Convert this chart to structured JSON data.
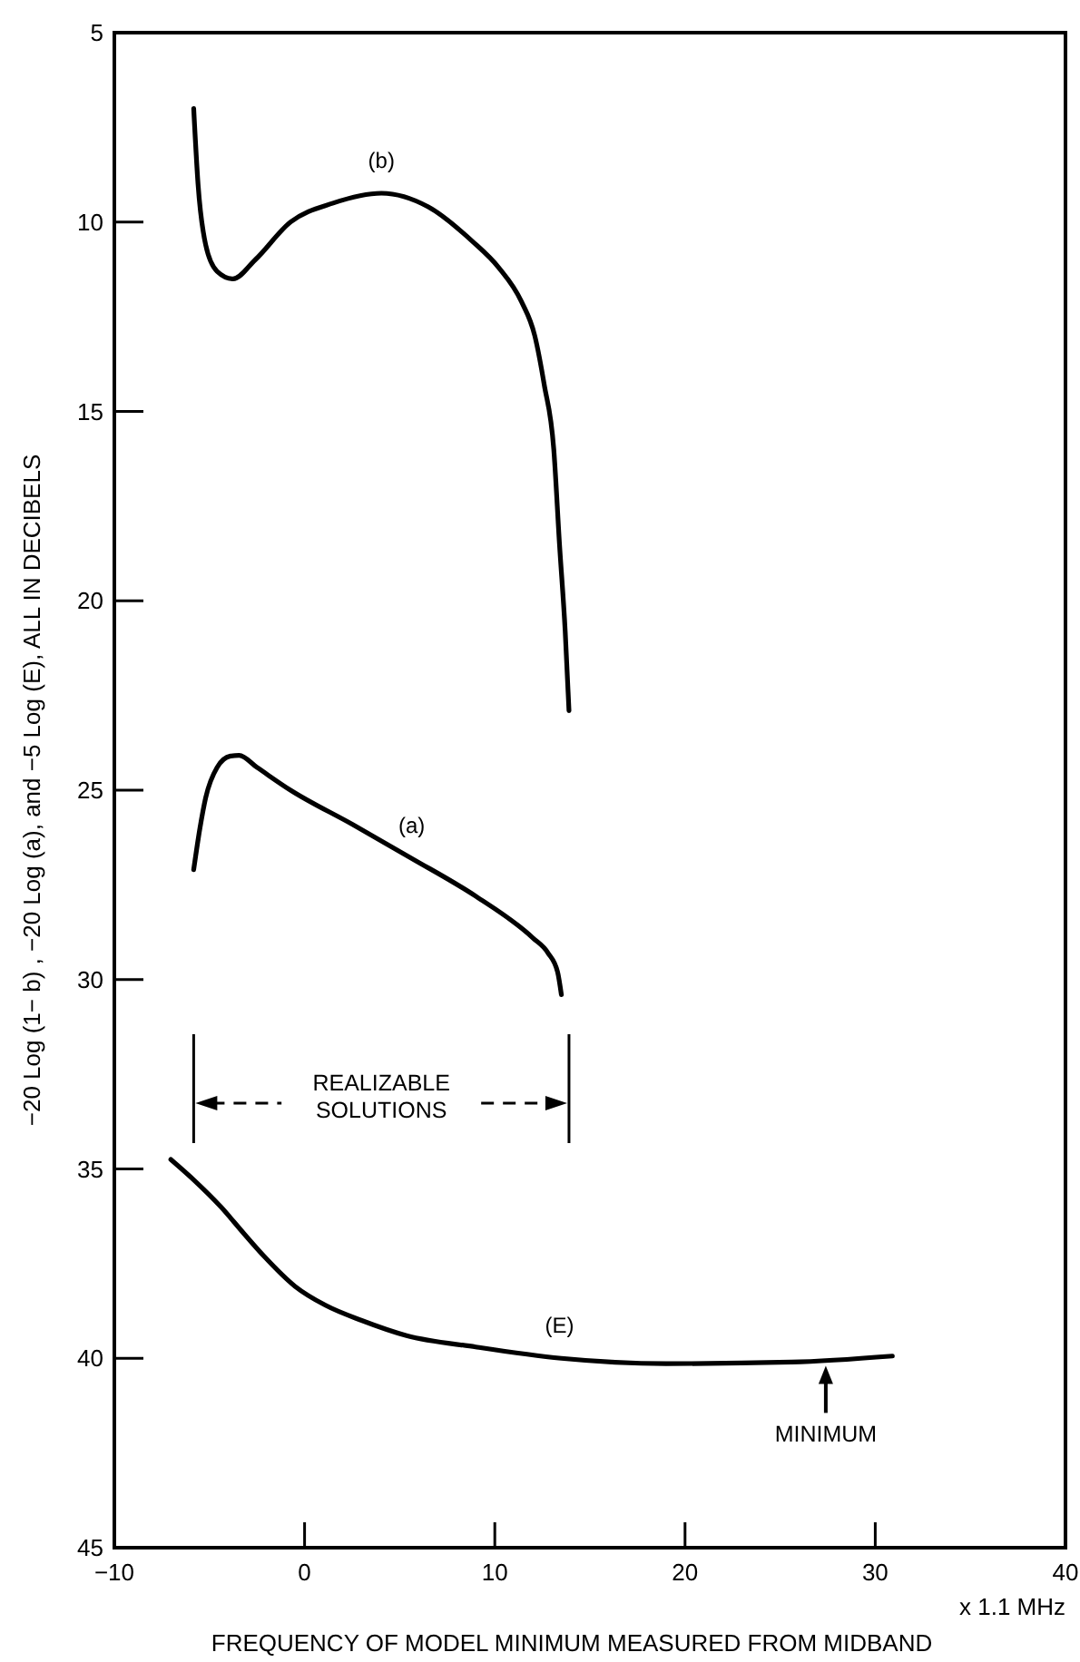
{
  "chart_data": {
    "type": "line",
    "xlabel": "FREQUENCY OF MODEL MINIMUM MEASURED FROM MIDBAND",
    "ylabel": "−20 Log (1− b) , −20 Log (a), and −5 Log (E), ALL IN DECIBELS",
    "xlim": [
      -10,
      40
    ],
    "xticks": [
      -10,
      0,
      10,
      20,
      30,
      40
    ],
    "ylim": [
      45,
      5
    ],
    "yticks": [
      5,
      10,
      15,
      20,
      25,
      30,
      35,
      40,
      45
    ],
    "grid": false,
    "marker": "none",
    "line_style": "solid",
    "series": [
      {
        "color": "#000000",
        "x": [
          -5.83,
          -5.6,
          -5.2,
          -4.6,
          -3.76,
          -2.6,
          -0.74,
          1.5,
          4.04,
          6.5,
          8.8,
          10.2,
          11.4,
          12.1,
          12.6,
          13.1,
          13.4,
          13.7,
          13.9
        ],
        "values": [
          7.0,
          9.0,
          10.6,
          11.3,
          11.5,
          11.0,
          10.0,
          9.5,
          9.24,
          9.6,
          10.5,
          11.2,
          12.1,
          13.0,
          14.3,
          16.0,
          18.5,
          20.8,
          22.9
        ]
      },
      {
        "color": "#000000",
        "x": [
          -5.83,
          -5.5,
          -5.2,
          -4.6,
          -3.9,
          -3.44,
          -2.5,
          -0.74,
          2.5,
          5.63,
          9.0,
          12.0,
          12.8,
          13.3,
          13.5
        ],
        "values": [
          27.1,
          26.0,
          25.2,
          24.4,
          24.1,
          24.08,
          24.4,
          25.0,
          25.9,
          26.8,
          27.8,
          28.9,
          29.3,
          29.8,
          30.4
        ]
      },
      {
        "color": "#000000",
        "x": [
          -7.03,
          -5.8,
          -4.4,
          -3.2,
          -2.14,
          -0.5,
          1.1,
          3.0,
          5.36,
          9.0,
          13.5,
          19.0,
          25.6,
          30.9
        ],
        "values": [
          34.75,
          35.3,
          36.0,
          36.7,
          37.3,
          38.1,
          38.6,
          39.0,
          39.4,
          39.7,
          40.0,
          40.14,
          40.1,
          39.94
        ]
      }
    ],
    "annotations": [
      "REALIZABLE SOLUTIONS",
      {
        "text": "(b)",
        "x": 4.04,
        "y": 9.24
      },
      {
        "text": "(a)",
        "x": 5.63,
        "y": 26.8
      },
      {
        "text": "(E)",
        "x": 13.4,
        "y": 40.0
      },
      {
        "text": "MINIMUM",
        "x": 27.4,
        "y": 40.1
      },
      "x 1.1 MHz"
    ]
  }
}
